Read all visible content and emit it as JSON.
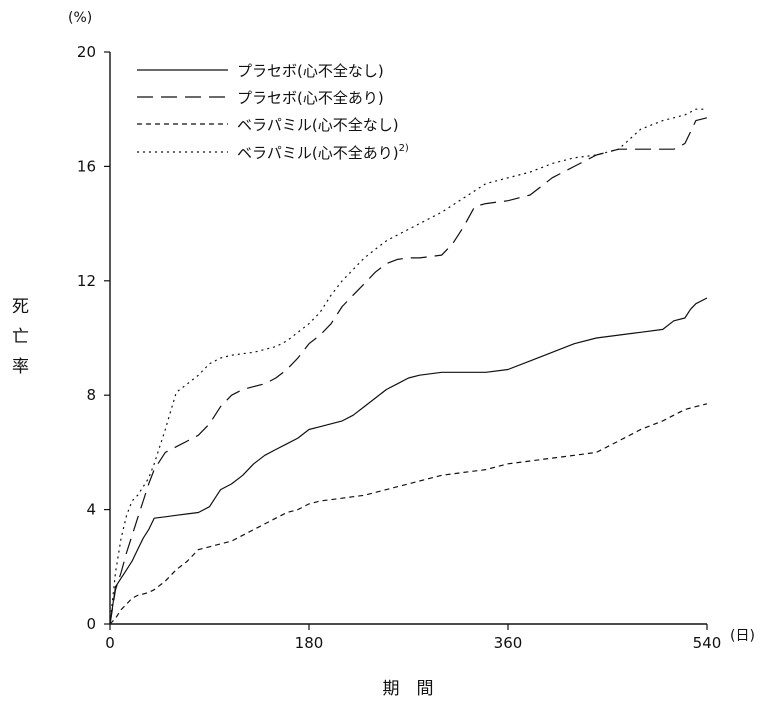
{
  "chart_data": {
    "type": "line",
    "x_unit": "(日)",
    "y_unit": "(%)",
    "xlabel": "期　間",
    "ylabel_chars": [
      "死",
      "亡",
      "率"
    ],
    "xlim": [
      0,
      540
    ],
    "ylim": [
      0,
      20
    ],
    "x_ticks": [
      0,
      180,
      360,
      540
    ],
    "y_ticks": [
      0,
      4,
      8,
      12,
      16,
      20
    ],
    "grid": false,
    "legend_position": "top-left",
    "series": [
      {
        "name": "プラセボ(心不全なし)",
        "line_style": "solid",
        "x": [
          0,
          5,
          10,
          15,
          20,
          25,
          30,
          35,
          40,
          50,
          60,
          70,
          80,
          90,
          100,
          110,
          120,
          130,
          140,
          150,
          160,
          170,
          180,
          190,
          200,
          210,
          220,
          230,
          240,
          250,
          260,
          270,
          280,
          300,
          320,
          340,
          360,
          380,
          400,
          420,
          440,
          460,
          480,
          500,
          510,
          520,
          525,
          530,
          540
        ],
        "values": [
          0,
          1.3,
          1.6,
          1.9,
          2.2,
          2.6,
          3.0,
          3.3,
          3.7,
          3.75,
          3.8,
          3.85,
          3.9,
          4.1,
          4.7,
          4.9,
          5.2,
          5.6,
          5.9,
          6.1,
          6.3,
          6.5,
          6.8,
          6.9,
          7.0,
          7.1,
          7.3,
          7.6,
          7.9,
          8.2,
          8.4,
          8.6,
          8.7,
          8.8,
          8.8,
          8.8,
          8.9,
          9.2,
          9.5,
          9.8,
          10.0,
          10.1,
          10.2,
          10.3,
          10.6,
          10.7,
          11.0,
          11.2,
          11.4
        ]
      },
      {
        "name": "プラセボ(心不全あり)",
        "line_style": "dashed",
        "x": [
          0,
          5,
          10,
          15,
          20,
          25,
          30,
          35,
          40,
          50,
          60,
          70,
          80,
          90,
          100,
          110,
          120,
          130,
          140,
          150,
          160,
          170,
          180,
          190,
          200,
          210,
          220,
          230,
          240,
          250,
          260,
          270,
          280,
          300,
          310,
          320,
          330,
          340,
          360,
          380,
          390,
          400,
          420,
          440,
          460,
          480,
          500,
          510,
          520,
          525,
          530,
          540
        ],
        "values": [
          0,
          1.2,
          1.8,
          2.5,
          3.1,
          3.7,
          4.3,
          4.9,
          5.4,
          6.0,
          6.2,
          6.4,
          6.6,
          7.0,
          7.6,
          8.0,
          8.2,
          8.3,
          8.4,
          8.6,
          8.9,
          9.3,
          9.8,
          10.1,
          10.5,
          11.1,
          11.5,
          11.9,
          12.3,
          12.6,
          12.75,
          12.8,
          12.8,
          12.9,
          13.3,
          13.9,
          14.6,
          14.7,
          14.8,
          15.0,
          15.3,
          15.6,
          16.0,
          16.4,
          16.6,
          16.6,
          16.6,
          16.6,
          16.8,
          17.2,
          17.6,
          17.7
        ]
      },
      {
        "name": "ベラパミル(心不全なし)",
        "line_style": "short-dashed",
        "x": [
          0,
          5,
          10,
          15,
          20,
          25,
          30,
          35,
          40,
          50,
          60,
          70,
          80,
          90,
          100,
          110,
          120,
          130,
          140,
          150,
          160,
          170,
          180,
          190,
          200,
          210,
          220,
          230,
          240,
          250,
          260,
          270,
          280,
          300,
          320,
          340,
          360,
          380,
          400,
          420,
          440,
          460,
          480,
          500,
          510,
          520,
          530,
          540
        ],
        "values": [
          0,
          0.2,
          0.5,
          0.7,
          0.9,
          1.0,
          1.05,
          1.1,
          1.2,
          1.5,
          1.9,
          2.2,
          2.6,
          2.7,
          2.8,
          2.9,
          3.1,
          3.3,
          3.5,
          3.7,
          3.9,
          4.0,
          4.2,
          4.3,
          4.35,
          4.4,
          4.45,
          4.5,
          4.6,
          4.7,
          4.8,
          4.9,
          5.0,
          5.2,
          5.3,
          5.4,
          5.6,
          5.7,
          5.8,
          5.9,
          6.0,
          6.4,
          6.8,
          7.1,
          7.3,
          7.5,
          7.6,
          7.7
        ]
      },
      {
        "name": "ベラパミル(心不全あり)",
        "line_style": "dotted",
        "x": [
          0,
          5,
          10,
          15,
          20,
          25,
          30,
          35,
          40,
          50,
          60,
          70,
          80,
          90,
          100,
          110,
          120,
          130,
          140,
          150,
          160,
          170,
          180,
          190,
          200,
          210,
          220,
          230,
          240,
          250,
          260,
          270,
          280,
          300,
          320,
          340,
          360,
          380,
          400,
          420,
          440,
          460,
          480,
          500,
          510,
          520,
          525,
          530,
          540
        ],
        "values": [
          0,
          1.8,
          3.0,
          3.8,
          4.3,
          4.5,
          4.8,
          5.1,
          5.6,
          6.8,
          8.1,
          8.4,
          8.7,
          9.1,
          9.3,
          9.4,
          9.45,
          9.5,
          9.6,
          9.7,
          9.9,
          10.2,
          10.5,
          10.9,
          11.5,
          12.0,
          12.4,
          12.8,
          13.1,
          13.4,
          13.6,
          13.8,
          14.0,
          14.4,
          14.9,
          15.4,
          15.6,
          15.8,
          16.1,
          16.3,
          16.4,
          16.6,
          17.3,
          17.6,
          17.7,
          17.8,
          17.9,
          18.0,
          18.0
        ]
      }
    ],
    "legend_superscript": "2)"
  }
}
